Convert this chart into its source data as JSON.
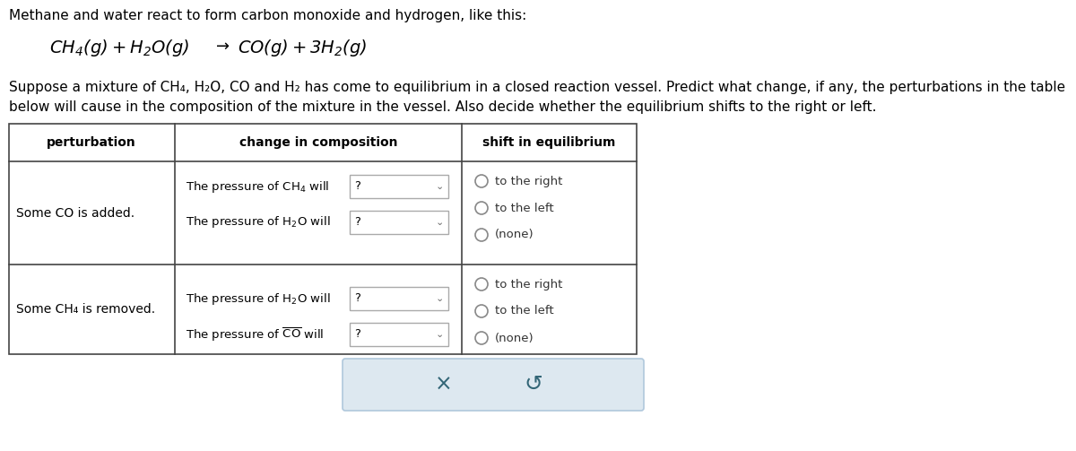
{
  "title_line1": "Methane and water react to form carbon monoxide and hydrogen, like this:",
  "body_text_line1": "Suppose a mixture of CH₄, H₂O, CO and H₂ has come to equilibrium in a closed reaction vessel. Predict what change, if any, the perturbations in the table",
  "body_text_line2": "below will cause in the composition of the mixture in the vessel. Also decide whether the equilibrium shifts to the right or left.",
  "col_headers": [
    "perturbation",
    "change in composition",
    "shift in equilibrium"
  ],
  "row1_perturbation": "Some CO is added.",
  "row2_perturbation": "Some CH₄ is removed.",
  "bg_color": "#ffffff",
  "table_border_color": "#444444",
  "button_bg": "#dde8f0",
  "button_border": "#b0c8dc",
  "radio_color": "#888888",
  "dropdown_border": "#aaaaaa",
  "text_color": "#222222",
  "radio_text_color": "#333333",
  "co_color": "#336677",
  "x_color": "#336677",
  "undo_color": "#336677"
}
